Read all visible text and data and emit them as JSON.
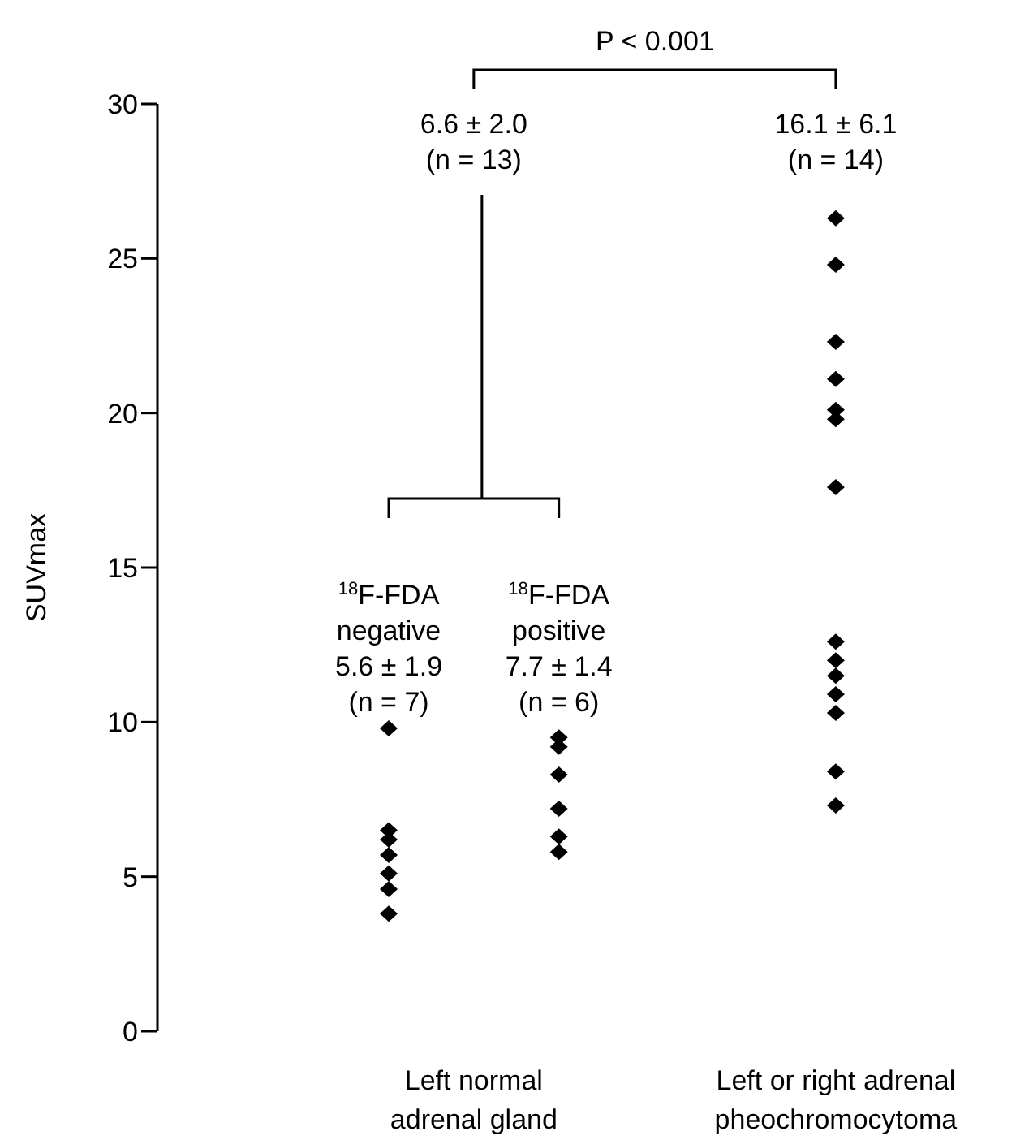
{
  "chart_data": {
    "type": "scatter",
    "ylabel": "SUVmax",
    "categories": [
      "Left normal\nadrenal gland",
      "Left or right adrenal\npheochromocytoma"
    ],
    "ylim": [
      0,
      30
    ],
    "yticks": [
      0,
      5,
      10,
      15,
      20,
      25,
      30
    ],
    "marker": "diamond",
    "grid": false,
    "legend": false,
    "series": [
      {
        "color": "#000000",
        "x": [
          "Left normal\nadrenal gland",
          "Left normal\nadrenal gland",
          "Left normal\nadrenal gland",
          "Left normal\nadrenal gland",
          "Left normal\nadrenal gland",
          "Left normal\nadrenal gland",
          "Left normal\nadrenal gland"
        ],
        "values": [
          9.8,
          6.5,
          6.2,
          5.7,
          5.1,
          4.6,
          3.8
        ]
      },
      {
        "color": "#000000",
        "x": [
          "Left normal\nadrenal gland",
          "Left normal\nadrenal gland",
          "Left normal\nadrenal gland",
          "Left normal\nadrenal gland",
          "Left normal\nadrenal gland",
          "Left normal\nadrenal gland"
        ],
        "values": [
          9.5,
          9.2,
          8.3,
          7.2,
          6.3,
          5.8
        ]
      },
      {
        "color": "#000000",
        "x": [
          "Left or right adrenal\npheochromocytoma",
          "Left or right adrenal\npheochromocytoma",
          "Left or right adrenal\npheochromocytoma",
          "Left or right adrenal\npheochromocytoma",
          "Left or right adrenal\npheochromocytoma",
          "Left or right adrenal\npheochromocytoma",
          "Left or right adrenal\npheochromocytoma",
          "Left or right adrenal\npheochromocytoma",
          "Left or right adrenal\npheochromocytoma",
          "Left or right adrenal\npheochromocytoma",
          "Left or right adrenal\npheochromocytoma",
          "Left or right adrenal\npheochromocytoma",
          "Left or right adrenal\npheochromocytoma",
          "Left or right adrenal\npheochromocytoma"
        ],
        "values": [
          26.3,
          24.8,
          22.3,
          21.1,
          20.1,
          19.8,
          17.6,
          12.6,
          12.0,
          11.5,
          10.9,
          10.3,
          8.4,
          7.3
        ]
      }
    ],
    "annotations": [
      "P < 0.001",
      "6.6 ± 2.0\n(n = 13)",
      "16.1 ± 6.1\n(n = 14)",
      "$^{18}$F-FDA\nnegative\n5.6 ± 1.9\n(n = 7)",
      "$^{18}$F-FDA\npositive\n7.7 ± 1.4\n(n = 6)"
    ]
  }
}
